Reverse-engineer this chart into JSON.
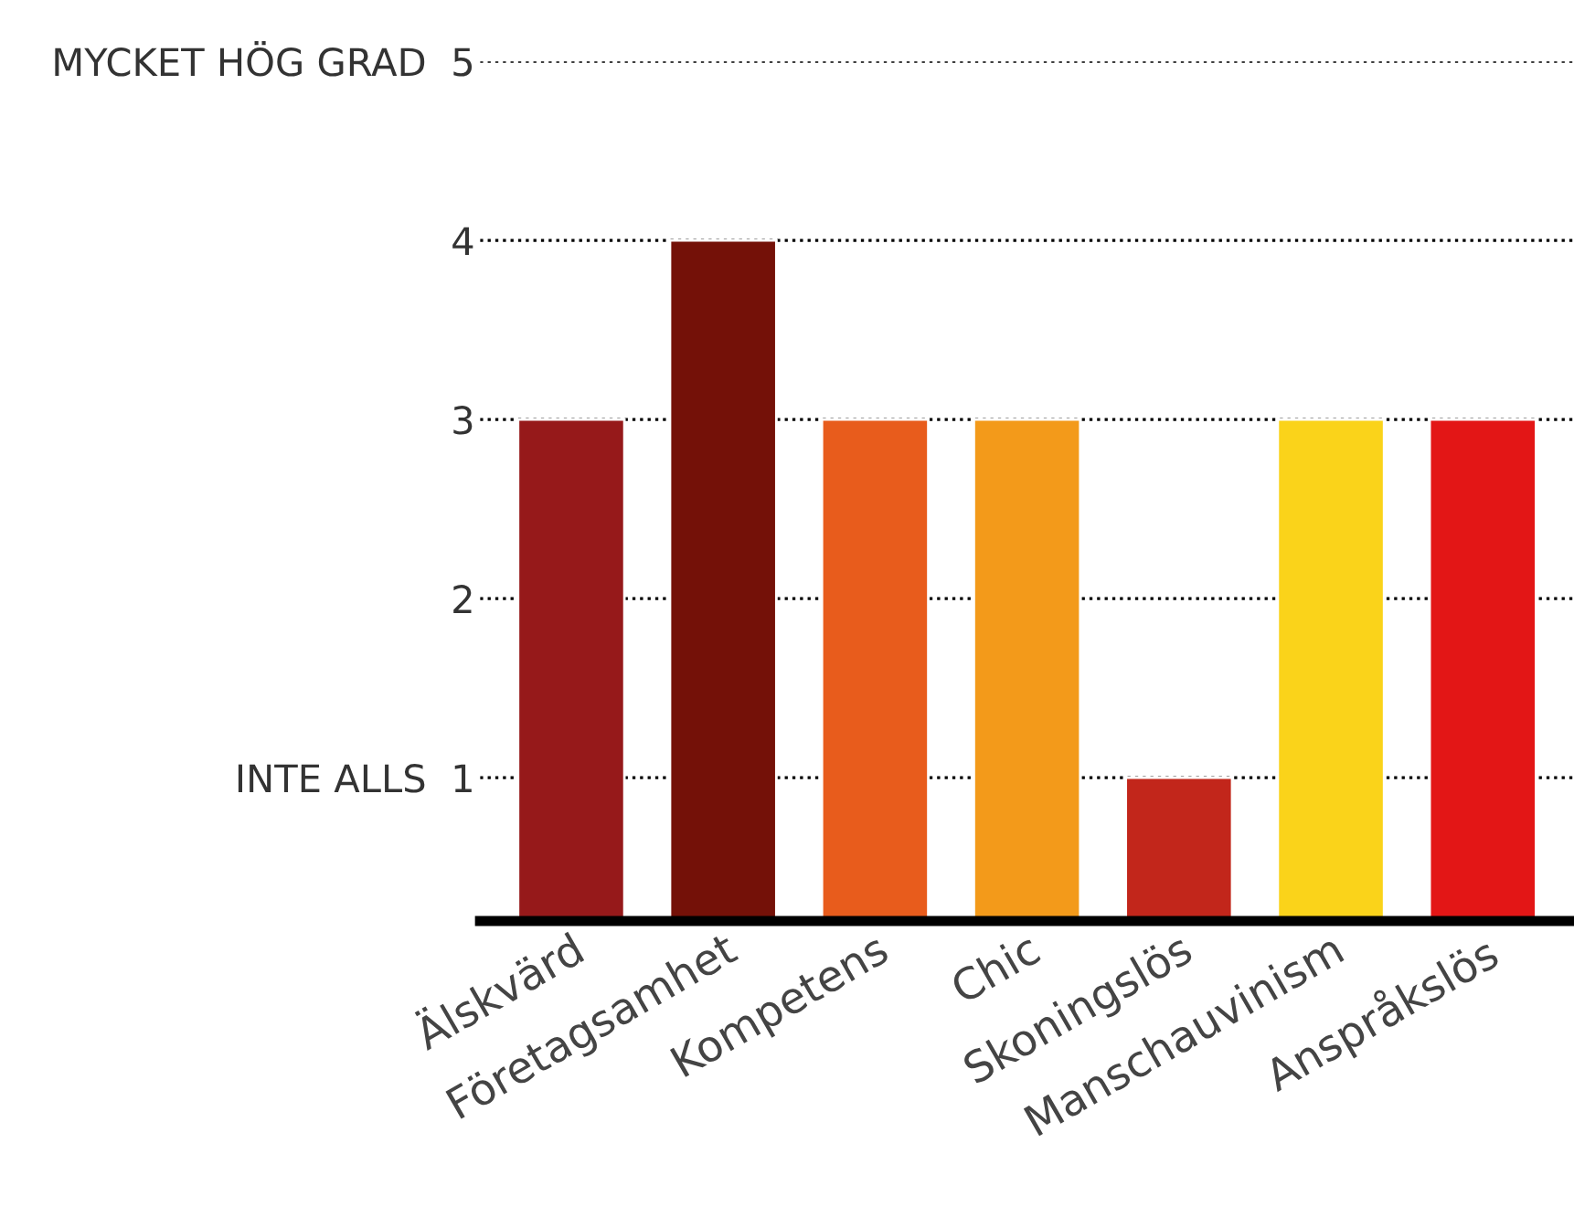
{
  "chart_data": {
    "type": "bar",
    "categories": [
      "Älskvärd",
      "Företagsamhet",
      "Kompetens",
      "Chic",
      "Skoningslös",
      "Manschauvinism",
      "Anspråkslös"
    ],
    "values": [
      3,
      4,
      3,
      3,
      1,
      3,
      3
    ],
    "colors": [
      "#96191a",
      "#741108",
      "#e85c1c",
      "#f39a1a",
      "#c2261b",
      "#fad31a",
      "#e31616"
    ],
    "ylim": [
      0.2,
      5
    ],
    "yticks": [
      {
        "value": 1,
        "label": "INTE ALLS  1"
      },
      2,
      3,
      4,
      {
        "value": 5,
        "label": "MYCKET HÖG GRAD  5"
      }
    ],
    "grid": "y",
    "legend": false
  }
}
